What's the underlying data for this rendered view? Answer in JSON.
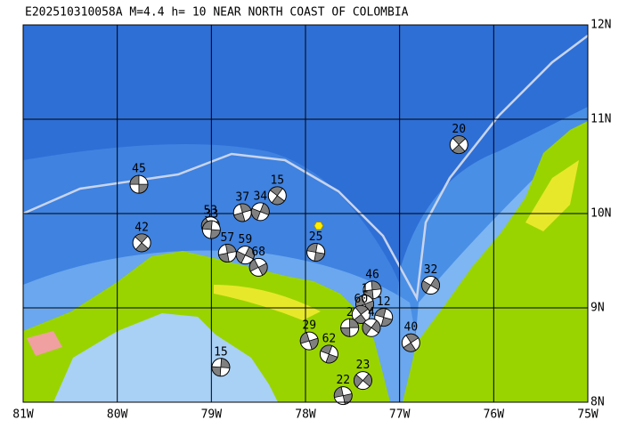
{
  "map": {
    "title": "E202510310058A  M=4.4  h= 10 NEAR NORTH COAST OF COLOMBIA",
    "lon_range": [
      -81,
      -75
    ],
    "lat_range": [
      8,
      12
    ],
    "lon_ticks": [
      {
        "value": -81,
        "label": "81W"
      },
      {
        "value": -80,
        "label": "80W"
      },
      {
        "value": -79,
        "label": "79W"
      },
      {
        "value": -78,
        "label": "78W"
      },
      {
        "value": -77,
        "label": "77W"
      },
      {
        "value": -76,
        "label": "76W"
      },
      {
        "value": -75,
        "label": "75W"
      }
    ],
    "lat_ticks": [
      {
        "value": 12,
        "label": "12N"
      },
      {
        "value": 11,
        "label": "11N"
      },
      {
        "value": 10,
        "label": "10N"
      },
      {
        "value": 9,
        "label": "9N"
      },
      {
        "value": 8,
        "label": "8N"
      }
    ],
    "main_event": {
      "lon": -77.86,
      "lat": 9.87
    },
    "events": [
      {
        "label": "45",
        "lon": -79.77,
        "lat": 10.31
      },
      {
        "label": "15",
        "lon": -78.3,
        "lat": 10.19
      },
      {
        "label": "37",
        "lon": -78.67,
        "lat": 10.01
      },
      {
        "label": "34",
        "lon": -78.48,
        "lat": 10.02
      },
      {
        "label": "53",
        "lon": -79.01,
        "lat": 9.87
      },
      {
        "label": "33",
        "lon": -79.0,
        "lat": 9.83
      },
      {
        "label": "42",
        "lon": -79.74,
        "lat": 9.69
      },
      {
        "label": "57",
        "lon": -78.83,
        "lat": 9.58
      },
      {
        "label": "59",
        "lon": -78.64,
        "lat": 9.56
      },
      {
        "label": "68",
        "lon": -78.5,
        "lat": 9.43
      },
      {
        "label": "25",
        "lon": -77.89,
        "lat": 9.59
      },
      {
        "label": "20",
        "lon": -76.37,
        "lat": 10.73
      },
      {
        "label": "46",
        "lon": -77.29,
        "lat": 9.19
      },
      {
        "label": "32",
        "lon": -76.67,
        "lat": 9.24
      },
      {
        "label": "1",
        "lon": -77.37,
        "lat": 9.04
      },
      {
        "label": "12",
        "lon": -77.17,
        "lat": 8.9
      },
      {
        "label": "60",
        "lon": -77.41,
        "lat": 8.93
      },
      {
        "label": "2",
        "lon": -77.53,
        "lat": 8.79
      },
      {
        "label": "4",
        "lon": -77.3,
        "lat": 8.79
      },
      {
        "label": "29",
        "lon": -77.96,
        "lat": 8.65
      },
      {
        "label": "62",
        "lon": -77.75,
        "lat": 8.51
      },
      {
        "label": "40",
        "lon": -76.88,
        "lat": 8.63
      },
      {
        "label": "15",
        "lon": -78.9,
        "lat": 8.37
      },
      {
        "label": "23",
        "lon": -77.39,
        "lat": 8.23
      },
      {
        "label": "22",
        "lon": -77.6,
        "lat": 8.07
      }
    ]
  }
}
